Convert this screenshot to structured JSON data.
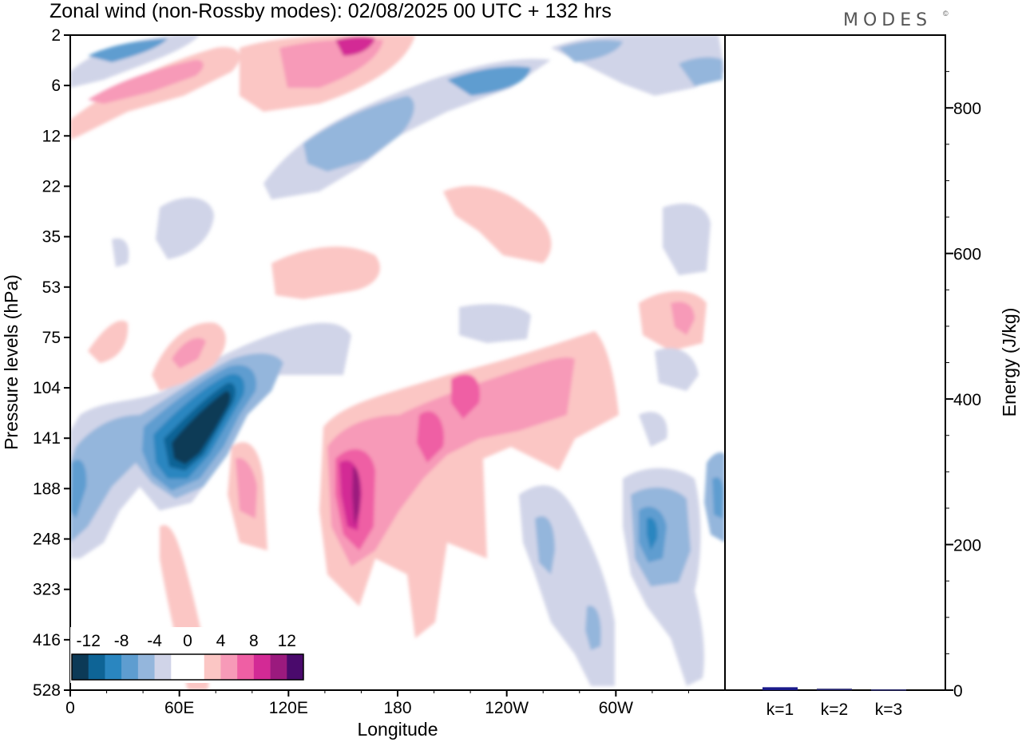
{
  "header": {
    "title": "Zonal wind (non-Rossby modes):  02/08/2025  00 UTC  + 132 hrs",
    "logo": "MODES",
    "logo_mark": "©"
  },
  "chart_data": [
    {
      "type": "heatmap",
      "title": "Zonal wind (non-Rossby modes):  02/08/2025  00 UTC  + 132 hrs",
      "xlabel": "Longitude",
      "ylabel": "Pressure levels (hPa)",
      "x_ticks": [
        "0",
        "60E",
        "120E",
        "180",
        "120W",
        "60W"
      ],
      "y_ticks": [
        "2",
        "6",
        "12",
        "22",
        "35",
        "53",
        "75",
        "104",
        "141",
        "188",
        "248",
        "323",
        "416",
        "528"
      ],
      "colorbar": {
        "labels": [
          "-12",
          "-8",
          "-4",
          "0",
          "4",
          "8",
          "12"
        ],
        "colors": [
          "#0c3a57",
          "#0e6496",
          "#2a86c0",
          "#5e9dd0",
          "#94b6dc",
          "#d0d4e8",
          "#ffffff",
          "#ffffff",
          "#fbc6c4",
          "#f79ab8",
          "#ef5fa4",
          "#d32a95",
          "#9b1a7e",
          "#4a0a6c"
        ]
      },
      "features": [
        {
          "name": "negative-core-60E-141hPa",
          "lon": 65,
          "level": 141,
          "value": -14
        },
        {
          "name": "negative-band-0-188hPa",
          "lon": 2,
          "level": 188,
          "value": -8
        },
        {
          "name": "positive-core-150E-188hPa",
          "lon": 150,
          "level": 188,
          "value": 12
        },
        {
          "name": "positive-band-upper-160E-2hPa",
          "lon": 160,
          "level": 2,
          "value": 10
        },
        {
          "name": "negative-band-upper-135W-6hPa",
          "lon": 225,
          "level": 6,
          "value": -8
        },
        {
          "name": "negative-cells-60W-248hPa",
          "lon": 300,
          "level": 248,
          "value": -8
        },
        {
          "name": "positive-cell-75E-90hPa",
          "lon": 78,
          "level": 90,
          "value": 8
        }
      ]
    },
    {
      "type": "bar",
      "ylabel": "Energy (J/kg)",
      "categories": [
        "k=1",
        "k=2",
        "k=3"
      ],
      "values": [
        4,
        2,
        1
      ],
      "ylim": [
        0,
        900
      ],
      "y_ticks": [
        0,
        200,
        400,
        600,
        800
      ]
    }
  ]
}
